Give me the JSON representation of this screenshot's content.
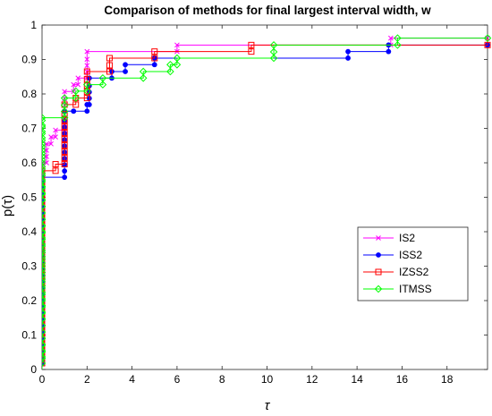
{
  "chart_data": {
    "type": "line",
    "title": "Comparison of methods for final largest interval width, w",
    "xlabel": "τ",
    "ylabel": "p(τ)",
    "xlim": [
      0,
      19.8
    ],
    "ylim": [
      0,
      1
    ],
    "xticks": [
      0,
      2,
      4,
      6,
      8,
      10,
      12,
      14,
      16,
      18
    ],
    "yticks": [
      0,
      0.1,
      0.2,
      0.3,
      0.4,
      0.5,
      0.6,
      0.7,
      0.8,
      0.9,
      1
    ],
    "grid": false,
    "legend_position": "right",
    "step_style": "stairs",
    "series": [
      {
        "name": "IS2",
        "color": "#ff00ff",
        "marker": "x",
        "points": [
          [
            0,
            0.0
          ],
          [
            0,
            0.6
          ],
          [
            0.2,
            0.655
          ],
          [
            0.4,
            0.675
          ],
          [
            0.6,
            0.695
          ],
          [
            1.0,
            0.807
          ],
          [
            1.4,
            0.827
          ],
          [
            1.6,
            0.846
          ],
          [
            2.0,
            0.923
          ],
          [
            6.0,
            0.942
          ],
          [
            15.5,
            0.962
          ],
          [
            19.8,
            0.962
          ]
        ]
      },
      {
        "name": "ISS2",
        "color": "#0000ff",
        "marker": "dot",
        "points": [
          [
            0,
            0.0
          ],
          [
            0,
            0.558
          ],
          [
            1.0,
            0.75
          ],
          [
            1.4,
            0.75
          ],
          [
            2.0,
            0.769
          ],
          [
            2.1,
            0.846
          ],
          [
            3.1,
            0.865
          ],
          [
            3.7,
            0.885
          ],
          [
            5.0,
            0.904
          ],
          [
            13.6,
            0.923
          ],
          [
            15.4,
            0.942
          ],
          [
            19.8,
            0.942
          ]
        ]
      },
      {
        "name": "IZSS2",
        "color": "#ff0000",
        "marker": "square",
        "points": [
          [
            0,
            0.0
          ],
          [
            0,
            0.577
          ],
          [
            0.6,
            0.596
          ],
          [
            1.0,
            0.769
          ],
          [
            1.5,
            0.788
          ],
          [
            2.0,
            0.865
          ],
          [
            3.0,
            0.904
          ],
          [
            5.0,
            0.923
          ],
          [
            9.3,
            0.942
          ],
          [
            19.8,
            0.962
          ]
        ]
      },
      {
        "name": "ITMSS",
        "color": "#00ff00",
        "marker": "diamond",
        "points": [
          [
            0,
            0.0
          ],
          [
            0,
            0.731
          ],
          [
            1.0,
            0.788
          ],
          [
            1.5,
            0.808
          ],
          [
            2.0,
            0.827
          ],
          [
            2.7,
            0.846
          ],
          [
            4.5,
            0.865
          ],
          [
            5.7,
            0.885
          ],
          [
            6.0,
            0.904
          ],
          [
            10.3,
            0.942
          ],
          [
            15.8,
            0.962
          ],
          [
            19.8,
            0.962
          ]
        ]
      }
    ]
  }
}
